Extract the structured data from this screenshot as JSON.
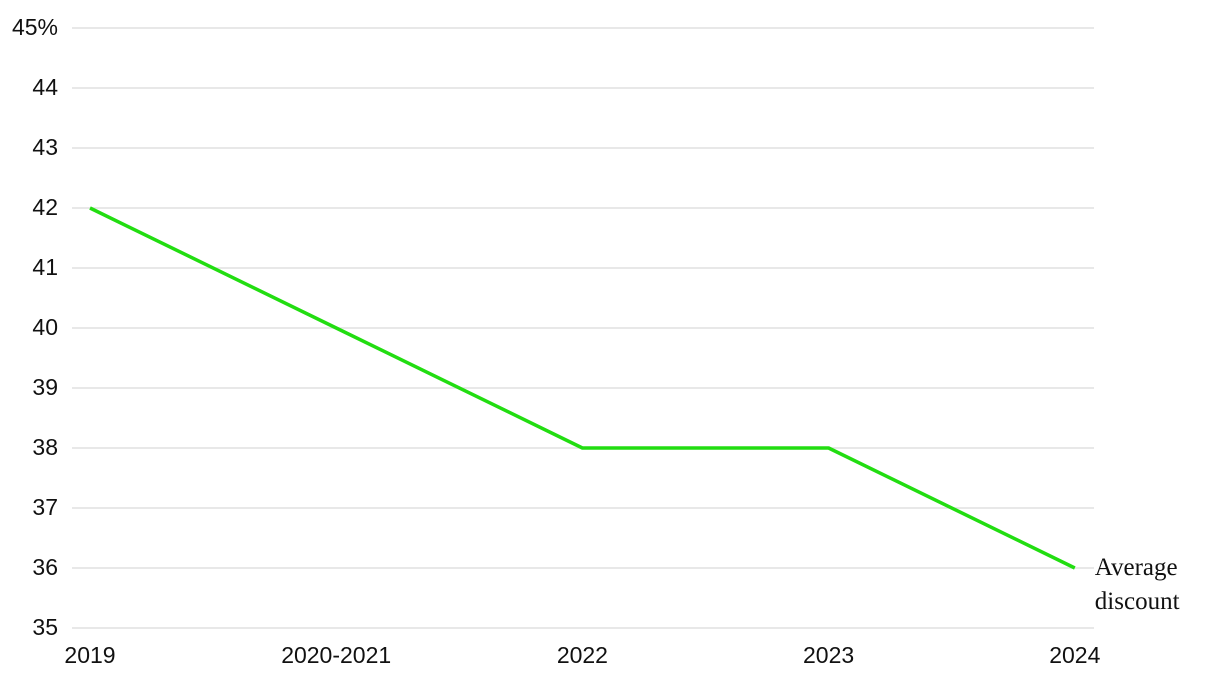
{
  "chart_data": {
    "type": "line",
    "categories": [
      "2019",
      "2020-2021",
      "2022",
      "2023",
      "2024"
    ],
    "series": [
      {
        "name": "Average discount",
        "color": "#22dd11",
        "values": [
          42,
          40,
          38,
          38,
          36
        ]
      }
    ],
    "ylim": [
      35,
      45
    ],
    "yticks": [
      35,
      36,
      37,
      38,
      39,
      40,
      41,
      42,
      43,
      44,
      {
        "value": 45,
        "label": "45%"
      }
    ],
    "grid": true
  }
}
